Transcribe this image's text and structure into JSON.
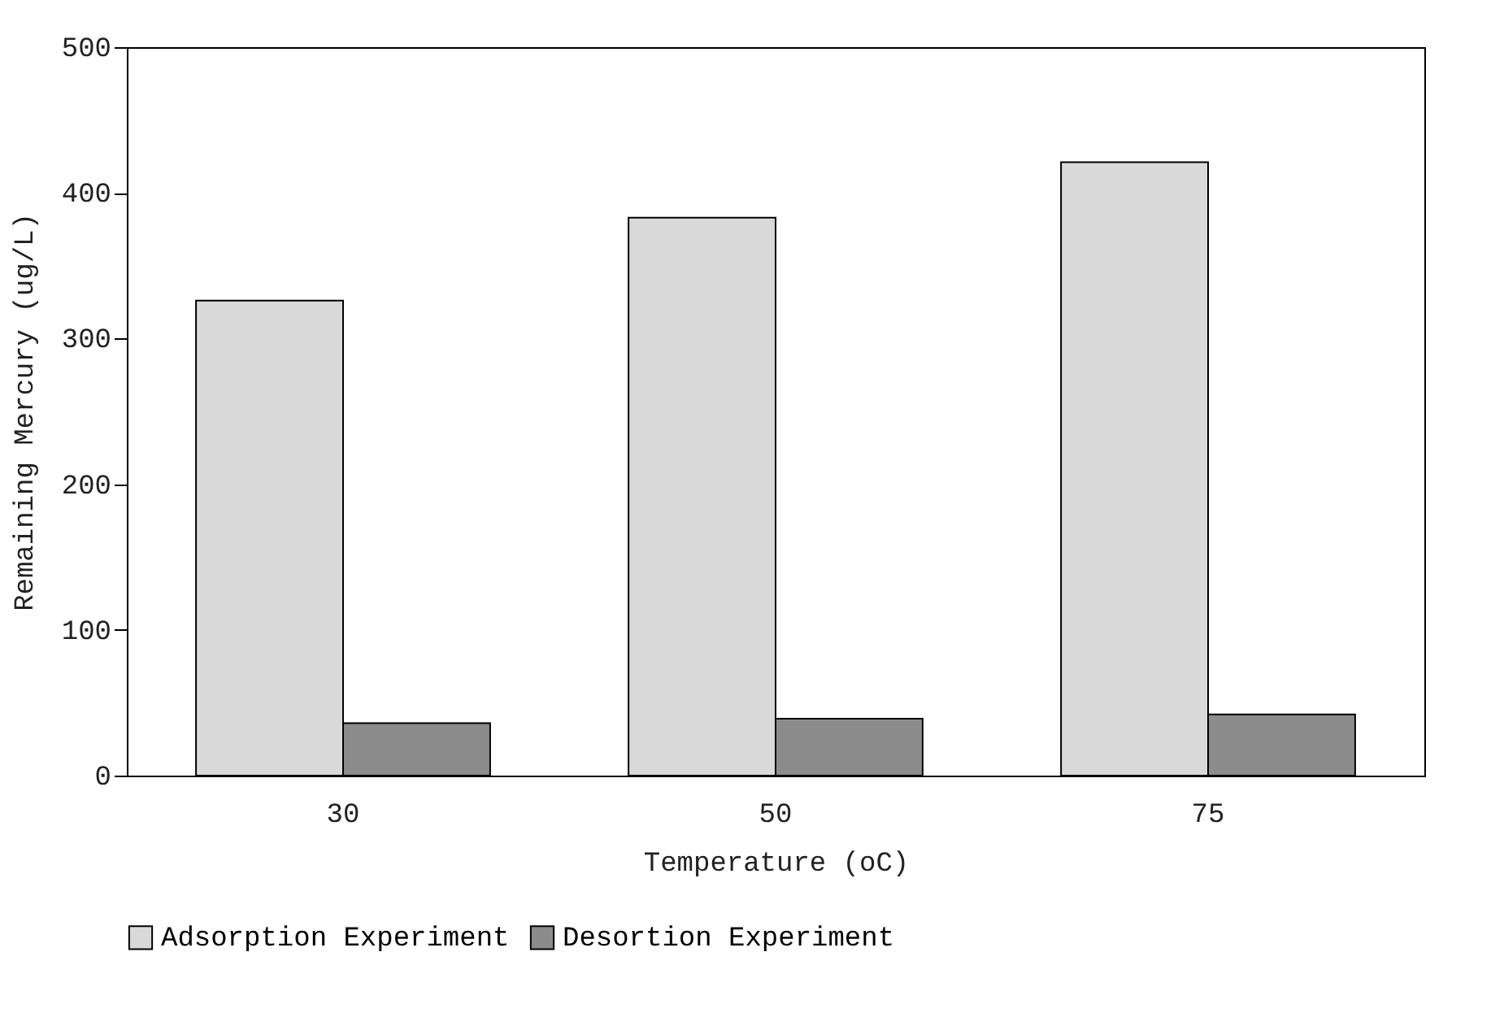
{
  "chart_data": {
    "type": "bar",
    "xlabel": "Temperature (oC)",
    "ylabel": "Remaining Mercury (ug/L)",
    "categories": [
      "30",
      "50",
      "75"
    ],
    "series": [
      {
        "name": "Adsorption Experiment",
        "color": "#d9d9d9",
        "values": [
          326,
          383,
          421
        ]
      },
      {
        "name": "Desortion Experiment",
        "color": "#8c8c8c",
        "values": [
          36,
          39,
          42
        ]
      }
    ],
    "ylim": [
      0,
      500
    ],
    "yticks": [
      0,
      100,
      200,
      300,
      400,
      500
    ],
    "grid": false,
    "legend": "bottom"
  }
}
